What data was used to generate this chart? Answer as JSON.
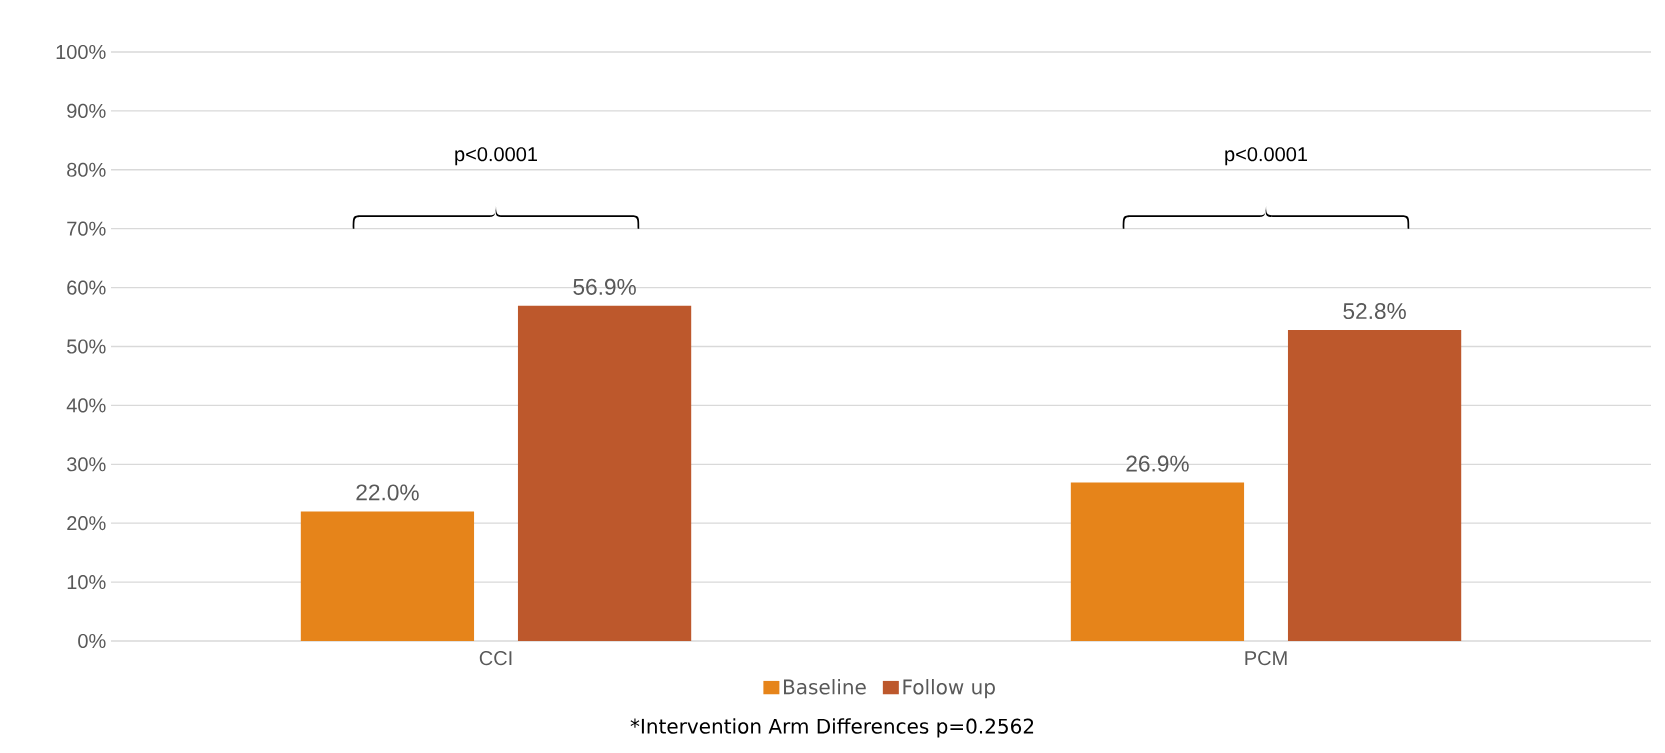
{
  "chart_data": {
    "type": "bar",
    "categories": [
      "CCI",
      "PCM"
    ],
    "series": [
      {
        "name": "Baseline",
        "color": "#e6841a",
        "values": [
          22.0,
          26.9
        ],
        "value_labels": [
          "22.0%",
          "26.9%"
        ]
      },
      {
        "name": "Follow up",
        "color": "#bd582c",
        "values": [
          56.9,
          52.8
        ],
        "value_labels": [
          "56.9%",
          "52.8%"
        ]
      }
    ],
    "ylim": [
      0,
      100
    ],
    "yticks": [
      {
        "value": 0,
        "label": "0%"
      },
      {
        "value": 10,
        "label": "10%"
      },
      {
        "value": 20,
        "label": "20%"
      },
      {
        "value": 30,
        "label": "30%"
      },
      {
        "value": 40,
        "label": "40%"
      },
      {
        "value": 50,
        "label": "50%"
      },
      {
        "value": 60,
        "label": "60%"
      },
      {
        "value": 70,
        "label": "70%"
      },
      {
        "value": 80,
        "label": "80%"
      },
      {
        "value": 90,
        "label": "90%"
      },
      {
        "value": 100,
        "label": "100%"
      }
    ],
    "grid": "y",
    "legend": "bottom",
    "annotations": [
      "p<0.0001",
      "p<0.0001",
      "*Intervention Arm Differences p=0.2562"
    ]
  }
}
